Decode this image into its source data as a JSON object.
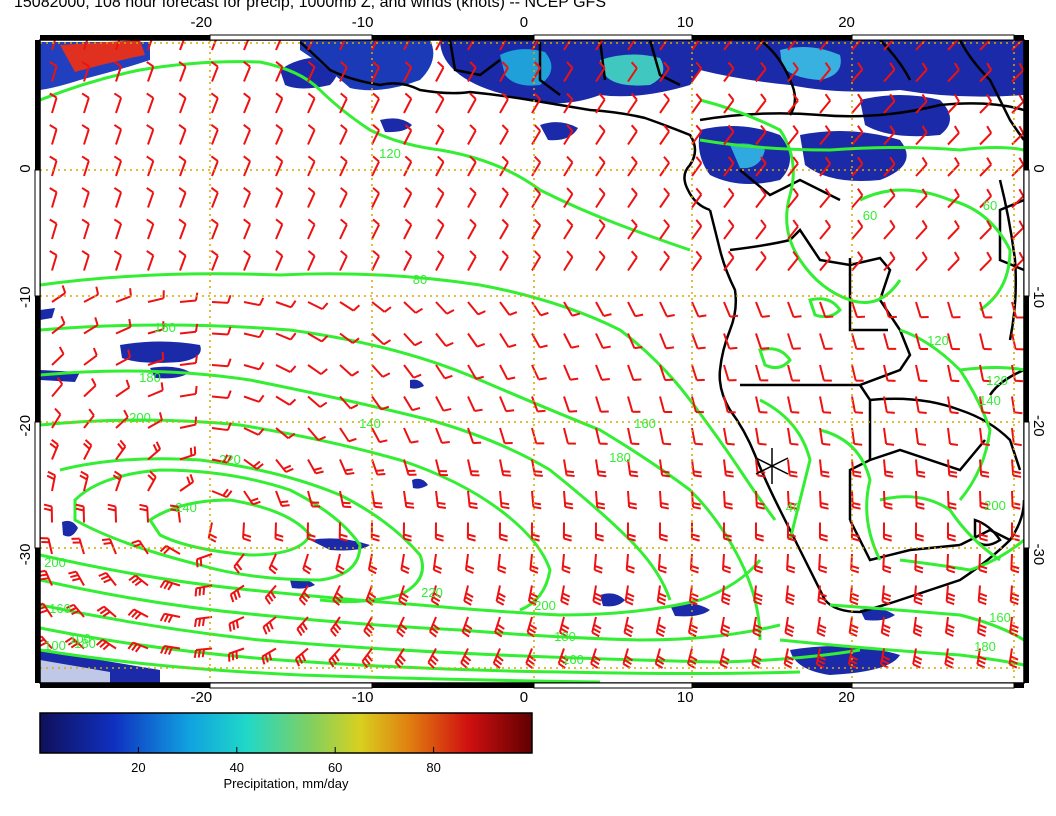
{
  "title": "15082000, 108 hour forecast for precip, 1000mb Z, and winds (knots) -- NCEP GFS",
  "map": {
    "lon_range": [
      -30,
      31
    ],
    "lat_range": [
      -40,
      10
    ],
    "lon_ticks": [
      "-20",
      "-10",
      "0",
      "10",
      "20"
    ],
    "lat_ticks": [
      "0",
      "-10",
      "-20",
      "-30"
    ],
    "grid_style": "dotted-orange",
    "colors": {
      "contour": "#33ee33",
      "barb": "#ee1111",
      "coast": "#000000",
      "grid": "#d8a800",
      "precip_low": "#1a1aa0",
      "precip_high": "#e01010"
    },
    "contour_labels": [
      "60",
      "60",
      "80",
      "120",
      "120",
      "120",
      "140",
      "140",
      "160",
      "160",
      "160",
      "160",
      "160",
      "180",
      "180",
      "180",
      "180",
      "180",
      "200",
      "200",
      "200",
      "200",
      "220",
      "220",
      "240",
      "100",
      "100",
      "40"
    ],
    "marker": "asterisk-station-icon"
  },
  "colorbar": {
    "ticks": [
      "20",
      "40",
      "60",
      "80"
    ],
    "label": "Precipitation, mm/day",
    "min": 0,
    "max": 100
  }
}
